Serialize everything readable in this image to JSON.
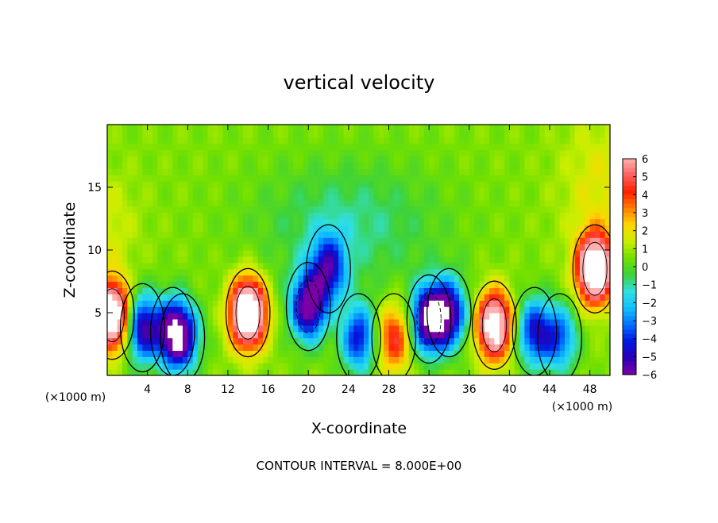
{
  "chart_data": {
    "type": "heatmap",
    "title": "vertical velocity",
    "xlabel": "X-coordinate",
    "ylabel": "Z-coordinate",
    "x_unit": "(×1000 m)",
    "xlim": [
      0,
      50
    ],
    "ylim": [
      0,
      20
    ],
    "x_ticks": [
      "4",
      "8",
      "12",
      "16",
      "20",
      "24",
      "28",
      "32",
      "36",
      "40",
      "44",
      "48"
    ],
    "y_ticks": [
      "5",
      "10",
      "15"
    ],
    "colorbar": {
      "ticks": [
        "6",
        "5",
        "4",
        "3",
        "2",
        "1",
        "0",
        "−1",
        "−2",
        "−3",
        "−4",
        "−5",
        "−6"
      ],
      "range": [
        -6,
        6
      ],
      "colors": [
        "#7a00a8",
        "#2a00b4",
        "#0018e0",
        "#0070ff",
        "#10c0ff",
        "#30e0e0",
        "#3cd23c",
        "#70e000",
        "#c8ee00",
        "#ffd800",
        "#ff8000",
        "#ff2000",
        "#ff6060",
        "#ffb0b0"
      ]
    },
    "features": [
      {
        "x": 0.5,
        "z": 4.8,
        "w": 9.0
      },
      {
        "x": 3.5,
        "z": 3.8,
        "w": -6.0
      },
      {
        "x": 6.5,
        "z": 3.5,
        "w": -5.5
      },
      {
        "x": 7.5,
        "z": 3.0,
        "w": -4.5
      },
      {
        "x": 14.0,
        "z": 5.0,
        "w": 10.0
      },
      {
        "x": 20.0,
        "z": 5.5,
        "w": -7.0
      },
      {
        "x": 22.0,
        "z": 8.5,
        "w": -5.0
      },
      {
        "x": 25.0,
        "z": 3.0,
        "w": -5.0
      },
      {
        "x": 28.5,
        "z": 3.0,
        "w": 4.0
      },
      {
        "x": 32.0,
        "z": 4.5,
        "w": -7.5
      },
      {
        "x": 34.0,
        "z": 5.0,
        "w": -6.0
      },
      {
        "x": 38.5,
        "z": 4.0,
        "w": 8.0
      },
      {
        "x": 42.5,
        "z": 3.5,
        "w": -5.0
      },
      {
        "x": 45.0,
        "z": 3.0,
        "w": -4.0
      },
      {
        "x": 48.5,
        "z": 8.5,
        "w": 9.5
      }
    ]
  },
  "footer": {
    "contour_interval": "CONTOUR INTERVAL = 8.000E+00"
  }
}
